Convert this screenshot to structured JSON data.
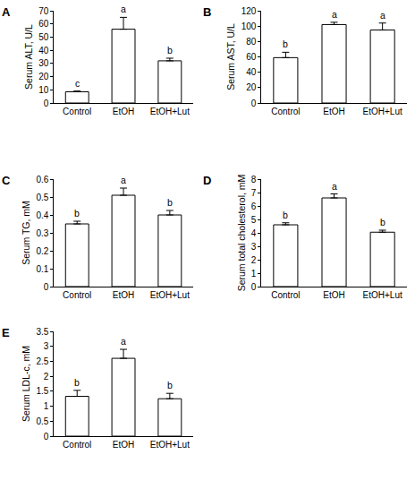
{
  "chart_data": [
    {
      "type": "bar",
      "panel": "A",
      "y_label": "Serum ALT, U/L",
      "categories": [
        "Control",
        "EtOH",
        "EtOH+Lut"
      ],
      "values": [
        8.5,
        56,
        32
      ],
      "errors": [
        0.6,
        9,
        2
      ],
      "letters": [
        "c",
        "a",
        "b"
      ],
      "color": "#ffffff",
      "ylim": [
        0,
        70
      ],
      "yticks": [
        0,
        10,
        20,
        30,
        40,
        50,
        60,
        70
      ],
      "grid": false
    },
    {
      "type": "bar",
      "panel": "B",
      "y_label": "Serum AST, U/L",
      "categories": [
        "Control",
        "EtOH",
        "EtOH+Lut"
      ],
      "values": [
        59,
        102,
        95
      ],
      "errors": [
        7,
        3,
        9
      ],
      "letters": [
        "b",
        "a",
        "a"
      ],
      "color": "#ffffff",
      "ylim": [
        0,
        120
      ],
      "yticks": [
        0,
        20,
        40,
        60,
        80,
        100,
        120
      ],
      "grid": false
    },
    {
      "type": "bar",
      "panel": "C",
      "y_label": "Serum TG, mM",
      "categories": [
        "Control",
        "EtOH",
        "EtOH+Lut"
      ],
      "values": [
        0.35,
        0.51,
        0.4
      ],
      "errors": [
        0.015,
        0.04,
        0.025
      ],
      "letters": [
        "b",
        "a",
        "b"
      ],
      "color": "#ffffff",
      "ylim": [
        0,
        0.6
      ],
      "yticks": [
        0,
        0.1,
        0.2,
        0.3,
        0.4,
        0.5,
        0.6
      ],
      "grid": false
    },
    {
      "type": "bar",
      "panel": "D",
      "y_label": "Serum total cholesterol, mM",
      "categories": [
        "Control",
        "EtOH",
        "EtOH+Lut"
      ],
      "values": [
        4.6,
        6.6,
        4.05
      ],
      "errors": [
        0.15,
        0.3,
        0.15
      ],
      "letters": [
        "b",
        "a",
        "b"
      ],
      "color": "#ffffff",
      "ylim": [
        0,
        8
      ],
      "yticks": [
        0,
        1,
        2,
        3,
        4,
        5,
        6,
        7,
        8
      ],
      "grid": false
    },
    {
      "type": "bar",
      "panel": "E",
      "y_label": "Serum LDL-c, mM",
      "categories": [
        "Control",
        "EtOH",
        "EtOH+Lut"
      ],
      "values": [
        1.33,
        2.6,
        1.25
      ],
      "errors": [
        0.2,
        0.3,
        0.18
      ],
      "letters": [
        "b",
        "a",
        "b"
      ],
      "color": "#ffffff",
      "ylim": [
        0,
        3.5
      ],
      "yticks": [
        0,
        0.5,
        1,
        1.5,
        2,
        2.5,
        3,
        3.5
      ],
      "grid": false
    }
  ]
}
